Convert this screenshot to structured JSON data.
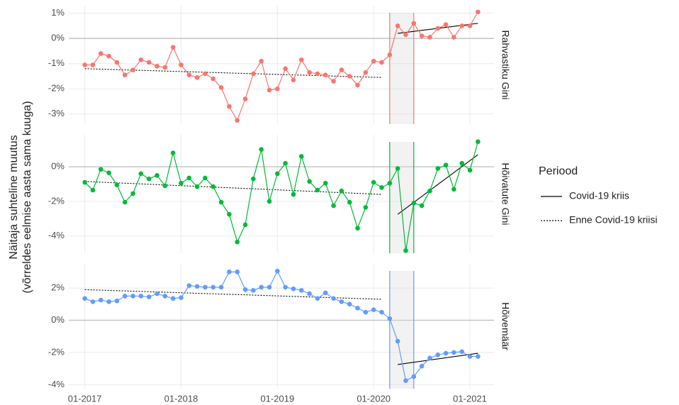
{
  "ylabel": [
    "Näitaja suhteline muutus",
    "(võrreldes eelmise aasta sama kuuga)"
  ],
  "x": [
    "2017-01",
    "2017-02",
    "2017-03",
    "2017-04",
    "2017-05",
    "2017-06",
    "2017-07",
    "2017-08",
    "2017-09",
    "2017-10",
    "2017-11",
    "2017-12",
    "2018-01",
    "2018-02",
    "2018-03",
    "2018-04",
    "2018-05",
    "2018-06",
    "2018-07",
    "2018-08",
    "2018-09",
    "2018-10",
    "2018-11",
    "2018-12",
    "2019-01",
    "2019-02",
    "2019-03",
    "2019-04",
    "2019-05",
    "2019-06",
    "2019-07",
    "2019-08",
    "2019-09",
    "2019-10",
    "2019-11",
    "2019-12",
    "2020-01",
    "2020-02",
    "2020-03",
    "2020-04",
    "2020-05",
    "2020-06",
    "2020-07",
    "2020-08",
    "2020-09",
    "2020-10",
    "2020-11",
    "2020-12",
    "2021-01",
    "2021-02"
  ],
  "xlim": [
    "2016-11",
    "2021-04"
  ],
  "xticks": [
    {
      "value": "2017-01",
      "label": "01-2017"
    },
    {
      "value": "2018-01",
      "label": "01-2018"
    },
    {
      "value": "2019-01",
      "label": "01-2019"
    },
    {
      "value": "2020-01",
      "label": "01-2020"
    },
    {
      "value": "2021-01",
      "label": "01-2021"
    }
  ],
  "shaded_period": [
    "2020-03",
    "2020-06"
  ],
  "legend": {
    "title": "Periood",
    "entries": [
      {
        "name": "Covid-19 kriis",
        "linestyle": "solid"
      },
      {
        "name": "Enne Covid-19 kriisi",
        "linestyle": "dotted"
      }
    ]
  },
  "chart_data": [
    {
      "type": "line",
      "facet_label": "Rahvastiku Gini",
      "color": "#F8766D",
      "values": [
        -1.05,
        -1.05,
        -0.6,
        -0.7,
        -0.95,
        -1.45,
        -1.25,
        -0.85,
        -0.95,
        -1.1,
        -1.15,
        -0.35,
        -1.05,
        -1.45,
        -1.55,
        -1.4,
        -1.6,
        -1.95,
        -2.7,
        -3.25,
        -2.4,
        -1.4,
        -0.9,
        -2.05,
        -2.0,
        -1.2,
        -1.65,
        -0.85,
        -1.35,
        -1.4,
        -1.45,
        -1.7,
        -1.25,
        -1.5,
        -1.85,
        -1.35,
        -0.9,
        -0.95,
        -0.65,
        0.5,
        0.15,
        0.6,
        0.1,
        0.05,
        0.4,
        0.55,
        0.05,
        0.5,
        0.5,
        1.05
      ],
      "ylim": [
        -3.4,
        1.3
      ],
      "yticks": [
        {
          "value": 1,
          "label": "1%"
        },
        {
          "value": 0,
          "label": "0%"
        },
        {
          "value": -1,
          "label": "-1%"
        },
        {
          "value": -2,
          "label": "-2%"
        },
        {
          "value": -3,
          "label": "-3%"
        }
      ],
      "trend_lines": [
        {
          "linestyle": "dotted",
          "x": [
            "2017-01",
            "2020-02"
          ],
          "values": [
            -1.2,
            -1.55
          ]
        },
        {
          "linestyle": "solid",
          "x": [
            "2020-04",
            "2021-02"
          ],
          "values": [
            0.2,
            0.6
          ]
        }
      ]
    },
    {
      "type": "line",
      "facet_label": "Hõivatute Gini",
      "color": "#00BA38",
      "values": [
        -0.9,
        -1.35,
        -0.15,
        -0.35,
        -1.05,
        -2.05,
        -1.55,
        -0.4,
        -0.7,
        -0.5,
        -1.1,
        0.8,
        -0.95,
        -0.65,
        -1.15,
        -0.65,
        -1.15,
        -2.05,
        -2.75,
        -4.35,
        -3.35,
        -0.7,
        1.0,
        -2.0,
        -0.4,
        0.2,
        -1.6,
        0.6,
        -0.85,
        -1.35,
        -0.95,
        -2.25,
        -1.4,
        -2.05,
        -3.55,
        -2.35,
        -0.9,
        -1.2,
        -0.95,
        -0.1,
        -4.85,
        -2.1,
        -2.25,
        -1.4,
        -0.1,
        0.1,
        -1.3,
        0.2,
        -0.2,
        1.45
      ],
      "ylim": [
        -5,
        1.85
      ],
      "yticks": [
        {
          "value": 0,
          "label": "0%"
        },
        {
          "value": -2,
          "label": "-2%"
        },
        {
          "value": -4,
          "label": "-4%"
        }
      ],
      "trend_lines": [
        {
          "linestyle": "dotted",
          "x": [
            "2017-01",
            "2020-02"
          ],
          "values": [
            -0.85,
            -1.6
          ]
        },
        {
          "linestyle": "solid",
          "x": [
            "2020-04",
            "2021-02"
          ],
          "values": [
            -2.75,
            0.7
          ]
        }
      ]
    },
    {
      "type": "line",
      "facet_label": "Hõivemäär",
      "color": "#619CFF",
      "values": [
        1.35,
        1.15,
        1.25,
        1.15,
        1.2,
        1.5,
        1.5,
        1.5,
        1.45,
        1.65,
        1.5,
        1.35,
        1.4,
        2.15,
        2.1,
        2.05,
        2.05,
        2.05,
        3.0,
        3.0,
        1.9,
        1.85,
        2.05,
        2.05,
        3.05,
        2.05,
        1.95,
        1.85,
        1.65,
        1.35,
        1.7,
        1.35,
        1.15,
        1.0,
        0.75,
        0.5,
        0.65,
        0.5,
        0.1,
        -1.3,
        -3.75,
        -3.5,
        -2.85,
        -2.35,
        -2.15,
        -2.05,
        -2.0,
        -1.95,
        -2.25,
        -2.25
      ],
      "ylim": [
        -4.25,
        3.5
      ],
      "yticks": [
        {
          "value": 2,
          "label": "2%"
        },
        {
          "value": 0,
          "label": "0%"
        },
        {
          "value": -2,
          "label": "-2%"
        },
        {
          "value": -4,
          "label": "-4%"
        }
      ],
      "trend_lines": [
        {
          "linestyle": "dotted",
          "x": [
            "2017-01",
            "2020-02"
          ],
          "values": [
            1.9,
            1.3
          ]
        },
        {
          "linestyle": "solid",
          "x": [
            "2020-04",
            "2021-02"
          ],
          "values": [
            -2.75,
            -2.05
          ]
        }
      ]
    }
  ]
}
